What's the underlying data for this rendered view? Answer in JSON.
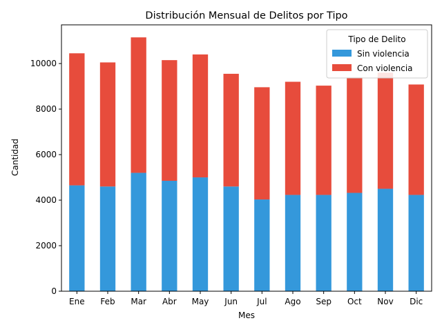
{
  "chart_data": {
    "type": "bar",
    "stacked": true,
    "title": "Distribución Mensual de Delitos por Tipo",
    "xlabel": "Mes",
    "ylabel": "Cantidad",
    "categories": [
      "Ene",
      "Feb",
      "Mar",
      "Abr",
      "May",
      "Jun",
      "Jul",
      "Ago",
      "Sep",
      "Oct",
      "Nov",
      "Dic"
    ],
    "series": [
      {
        "name": "Sin violencia",
        "color": "#3498db",
        "values": [
          4650,
          4600,
          5200,
          4850,
          5000,
          4600,
          4030,
          4230,
          4230,
          4320,
          4500,
          4230
        ]
      },
      {
        "name": "Con violencia",
        "color": "#e74c3c",
        "values": [
          5800,
          5450,
          5950,
          5300,
          5400,
          4950,
          4930,
          4970,
          4800,
          5070,
          5100,
          4850
        ]
      }
    ],
    "ylim": [
      0,
      11700
    ],
    "yticks": [
      0,
      2000,
      4000,
      6000,
      8000,
      10000
    ],
    "legend": {
      "title": "Tipo de Delito",
      "position": "top-right"
    },
    "grid": false
  }
}
